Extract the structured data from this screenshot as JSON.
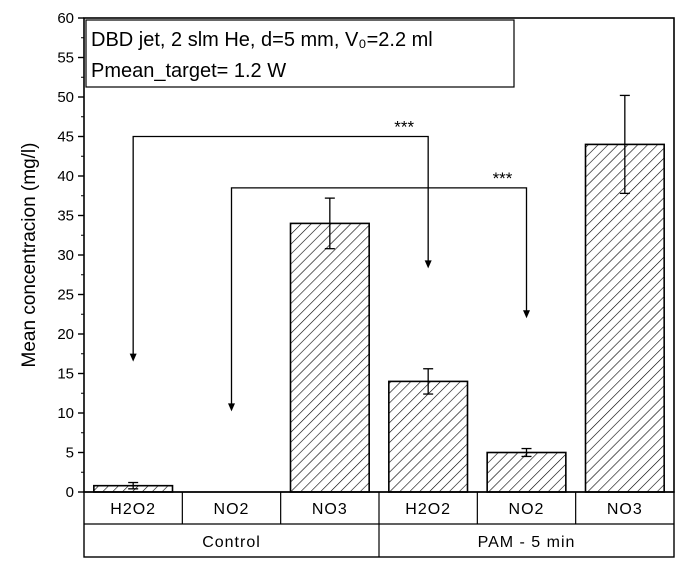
{
  "chart_data": {
    "type": "bar",
    "ylabel": "Mean concentracion (mg/l)",
    "ylim": [
      0,
      60
    ],
    "yticks": [
      0,
      5,
      10,
      15,
      20,
      25,
      30,
      35,
      40,
      45,
      50,
      55,
      60
    ],
    "grid": false,
    "pattern": "diagonal-hatch",
    "legend": {
      "placement": "top-left",
      "line1": "DBD jet, 2 slm He, d=5 mm, V₀=2.2 ml",
      "line2": "Pmean_target= 1.2 W"
    },
    "groups": [
      {
        "name": "Control",
        "categories": [
          "H2O2",
          "NO2",
          "NO3"
        ]
      },
      {
        "name": "PAM - 5 min",
        "categories": [
          "H2O2",
          "NO2",
          "NO3"
        ]
      }
    ],
    "bars": [
      {
        "group": "Control",
        "category": "H2O2",
        "value": 0.8,
        "err": 0.4
      },
      {
        "group": "Control",
        "category": "NO2",
        "value": 0,
        "err": 0
      },
      {
        "group": "Control",
        "category": "NO3",
        "value": 34,
        "err": 3.2
      },
      {
        "group": "PAM - 5 min",
        "category": "H2O2",
        "value": 14,
        "err": 1.6
      },
      {
        "group": "PAM - 5 min",
        "category": "NO2",
        "value": 5,
        "err": 0.5
      },
      {
        "group": "PAM - 5 min",
        "category": "NO3",
        "value": 44,
        "err": 6.2
      }
    ],
    "annotations": [
      {
        "label": "***",
        "from_bar": 0,
        "to_bar": 3,
        "from_y": 16.5,
        "to_y": 28.3,
        "bracket_y": 45
      },
      {
        "label": "***",
        "from_bar": 1,
        "to_bar": 4,
        "from_y": 10.2,
        "to_y": 22,
        "bracket_y": 38.5
      }
    ]
  }
}
